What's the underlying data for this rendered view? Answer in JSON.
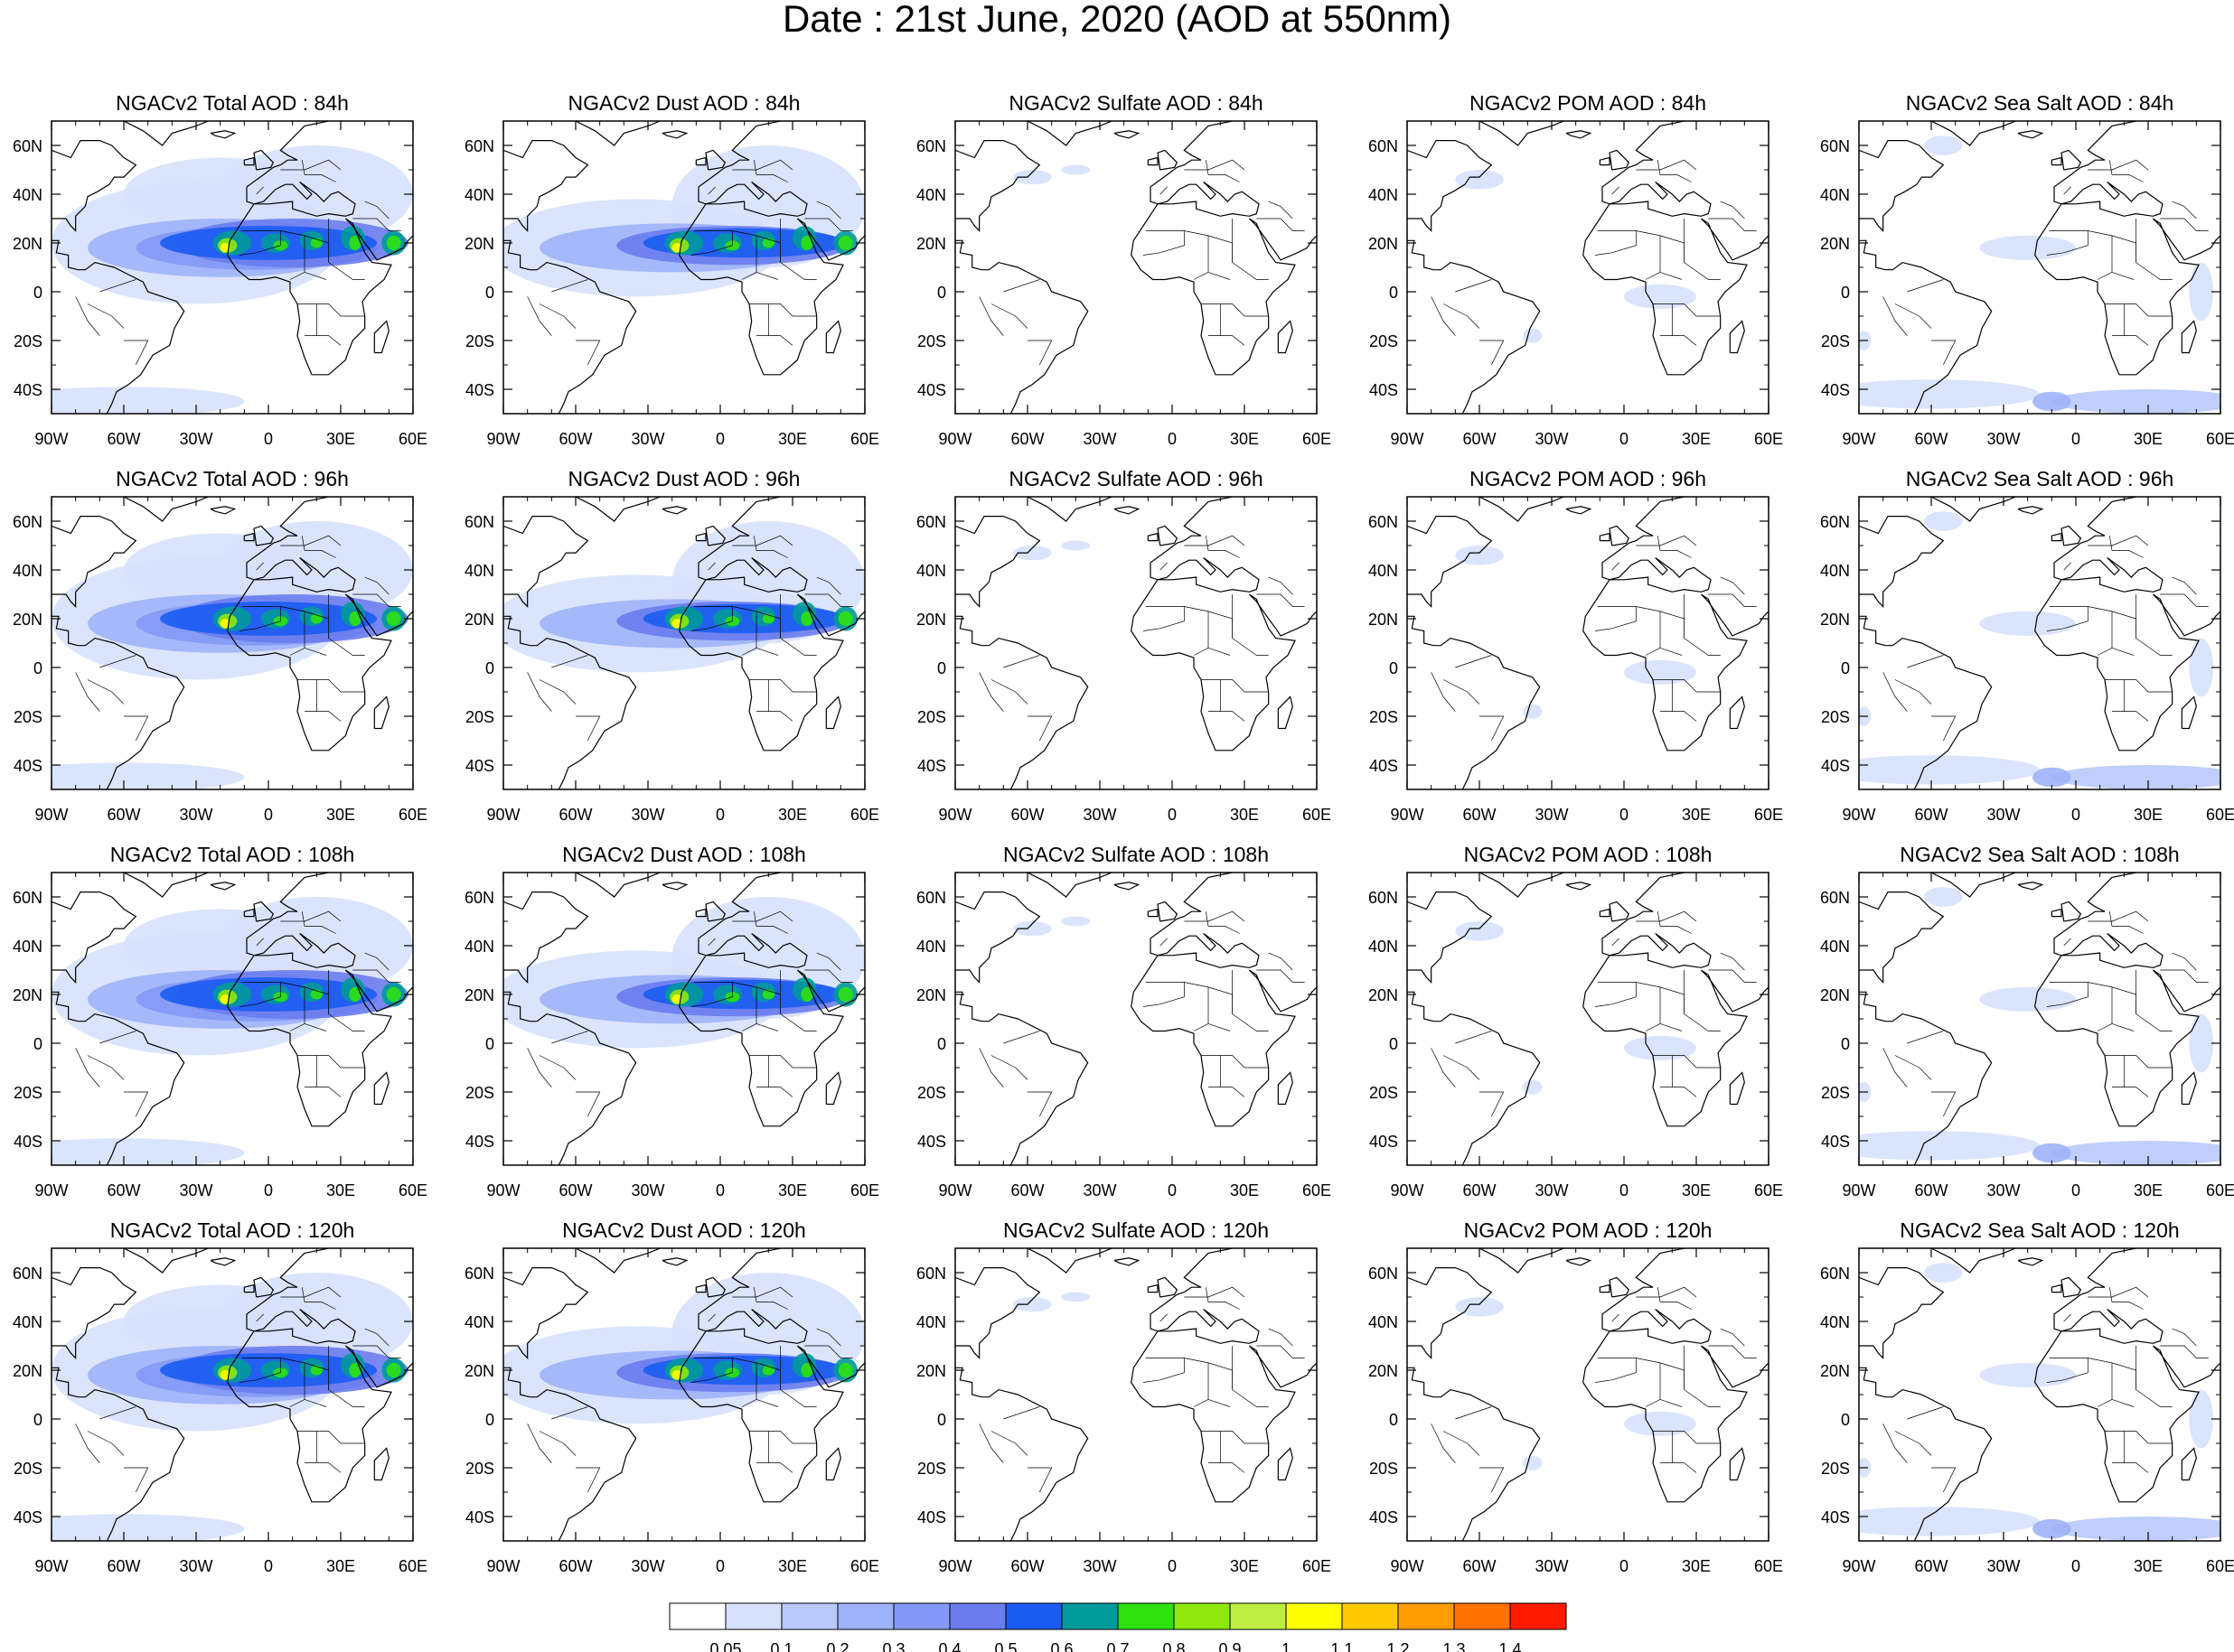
{
  "title": "Date : 21st June, 2020 (AOD at 550nm)",
  "lat_labels": [
    "60N",
    "40N",
    "20N",
    "0",
    "20S",
    "40S"
  ],
  "lon_labels": [
    "90W",
    "60W",
    "30W",
    "0",
    "30E",
    "60E"
  ],
  "map_extent": {
    "lon_range": [
      -90,
      60
    ],
    "lat_range": [
      -50,
      70
    ]
  },
  "panels": [
    [
      "NGACv2 Total AOD : 84h",
      "NGACv2 Dust AOD : 84h",
      "NGACv2 Sulfate AOD : 84h",
      "NGACv2 POM AOD : 84h",
      "NGACv2 Sea Salt AOD : 84h"
    ],
    [
      "NGACv2 Total AOD : 96h",
      "NGACv2 Dust AOD : 96h",
      "NGACv2 Sulfate AOD : 96h",
      "NGACv2 POM AOD : 96h",
      "NGACv2 Sea Salt AOD : 96h"
    ],
    [
      "NGACv2 Total AOD : 108h",
      "NGACv2 Dust AOD : 108h",
      "NGACv2 Sulfate AOD : 108h",
      "NGACv2 POM AOD : 108h",
      "NGACv2 Sea Salt AOD : 108h"
    ],
    [
      "NGACv2 Total AOD : 120h",
      "NGACv2 Dust AOD : 120h",
      "NGACv2 Sulfate AOD : 120h",
      "NGACv2 POM AOD : 120h",
      "NGACv2 Sea Salt  AOD : 120h"
    ]
  ],
  "colorbar": {
    "levels": [
      "0.05",
      "0.1",
      "0.2",
      "0.3",
      "0.4",
      "0.5",
      "0.6",
      "0.7",
      "0.8",
      "0.9",
      "1",
      "1.1",
      "1.2",
      "1.3",
      "1.4"
    ],
    "colors": [
      "#ffffff",
      "#d7e1fd",
      "#b9c9fb",
      "#9eb2f9",
      "#8499f5",
      "#6a7cee",
      "#1a5cf2",
      "#009a9a",
      "#2ee10e",
      "#8ee80c",
      "#c0ec43",
      "#fffe00",
      "#ffc900",
      "#ff9c00",
      "#ff7200",
      "#ff1a00"
    ]
  }
}
